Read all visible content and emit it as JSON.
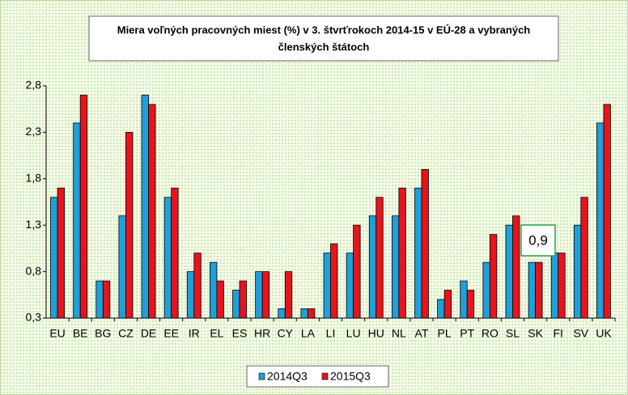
{
  "chart_data": {
    "type": "bar",
    "title": "Miera voľných pracovných miest (%) v 3. štvrťrokoch 2014-15 v EÚ-28 a vybraných",
    "subtitle": "členských štátoch",
    "categories": [
      "EU",
      "BE",
      "BG",
      "CZ",
      "DE",
      "EE",
      "IR",
      "EL",
      "ES",
      "HR",
      "CY",
      "LA",
      "LI",
      "LU",
      "HU",
      "NL",
      "AT",
      "PL",
      "PT",
      "RO",
      "SL",
      "SK",
      "FI",
      "SV",
      "UK"
    ],
    "series": [
      {
        "name": "2014Q3",
        "color": "#1fa0d8",
        "values": [
          1.6,
          2.4,
          0.7,
          1.4,
          2.7,
          1.6,
          0.8,
          0.9,
          0.6,
          0.8,
          0.4,
          0.4,
          1.0,
          1.0,
          1.4,
          1.4,
          1.7,
          0.5,
          0.7,
          0.9,
          1.3,
          0.9,
          1.0,
          1.3,
          2.4
        ]
      },
      {
        "name": "2015Q3",
        "color": "#e8131b",
        "values": [
          1.7,
          2.7,
          0.7,
          2.3,
          2.6,
          1.7,
          1.0,
          0.7,
          0.7,
          0.8,
          0.8,
          0.4,
          1.1,
          1.3,
          1.6,
          1.7,
          1.9,
          0.6,
          0.6,
          1.2,
          1.4,
          0.9,
          1.0,
          1.6,
          2.6
        ]
      }
    ],
    "ylim": [
      0.3,
      2.8
    ],
    "yticks": [
      {
        "value": 0.3,
        "label": "0,3"
      },
      {
        "value": 0.8,
        "label": "0,8"
      },
      {
        "value": 1.3,
        "label": "1,3"
      },
      {
        "value": 1.8,
        "label": "1,8"
      },
      {
        "value": 2.3,
        "label": "2,3"
      },
      {
        "value": 2.8,
        "label": "2,8"
      }
    ],
    "annotation": "0,9",
    "grid": false
  }
}
